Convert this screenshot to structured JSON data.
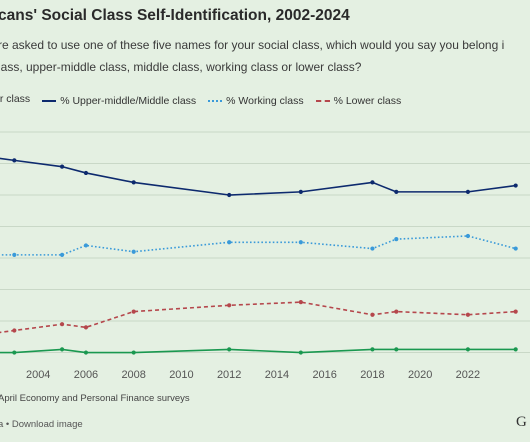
{
  "title_visible": "cans' Social Class Self-Identification, 2002-2024",
  "subtitle_line1": "re asked to use one of these five names for your social class, which would you say you belong i",
  "subtitle_line2": "lass, upper-middle class, middle class, working class or lower class?",
  "source_text": "April Economy and Personal Finance surveys",
  "footer_text": "a • Download image",
  "logo_text": "G",
  "colors": {
    "upper": "#1a9850",
    "middle": "#0d2a6e",
    "working": "#3a9ad9",
    "lower": "#b5474c",
    "grid": "#c9d8c7"
  },
  "chart_data": {
    "type": "line",
    "title": "",
    "xlabel": "",
    "ylabel": "",
    "xlim": [
      2002.4,
      2024.6
    ],
    "ylim": [
      -3,
      70
    ],
    "x_ticks": [
      2004,
      2006,
      2008,
      2010,
      2012,
      2014,
      2016,
      2018,
      2020,
      2022
    ],
    "grid": true,
    "legend_placement": "top",
    "series": [
      {
        "name": "% Upper-middle/Middle class",
        "style": "solid",
        "color": "#0d2a6e",
        "x": [
          2002,
          2003,
          2005,
          2006,
          2008,
          2012,
          2015,
          2018,
          2019,
          2022,
          2024
        ],
        "y": [
          62,
          61,
          59,
          57,
          54,
          50,
          51,
          54,
          51,
          51,
          53
        ]
      },
      {
        "name": "% Working class",
        "style": "dotted",
        "color": "#3a9ad9",
        "x": [
          2002,
          2003,
          2005,
          2006,
          2008,
          2012,
          2015,
          2018,
          2019,
          2022,
          2024
        ],
        "y": [
          31,
          31,
          31,
          34,
          32,
          35,
          35,
          33,
          36,
          37,
          33
        ]
      },
      {
        "name": "% Lower class",
        "style": "dashed",
        "color": "#b5474c",
        "x": [
          2002,
          2003,
          2005,
          2006,
          2008,
          2012,
          2015,
          2018,
          2019,
          2022,
          2024
        ],
        "y": [
          6,
          7,
          9,
          8,
          13,
          15,
          16,
          12,
          13,
          12,
          13
        ]
      },
      {
        "name": "% Upper class",
        "style": "solid",
        "color": "#1a9850",
        "x": [
          2002,
          2003,
          2005,
          2006,
          2008,
          2012,
          2015,
          2018,
          2019,
          2022,
          2024
        ],
        "y": [
          0,
          0,
          1,
          0,
          0,
          1,
          0,
          1,
          1,
          1,
          1
        ]
      }
    ],
    "legend_entries": [
      {
        "label": "er class",
        "color": "#1a9850",
        "style": "solid"
      },
      {
        "label": "% Upper-middle/Middle class",
        "color": "#0d2a6e",
        "style": "solid"
      },
      {
        "label": "% Working class",
        "color": "#3a9ad9",
        "style": "dotted"
      },
      {
        "label": "% Lower class",
        "color": "#b5474c",
        "style": "dashed"
      }
    ]
  }
}
